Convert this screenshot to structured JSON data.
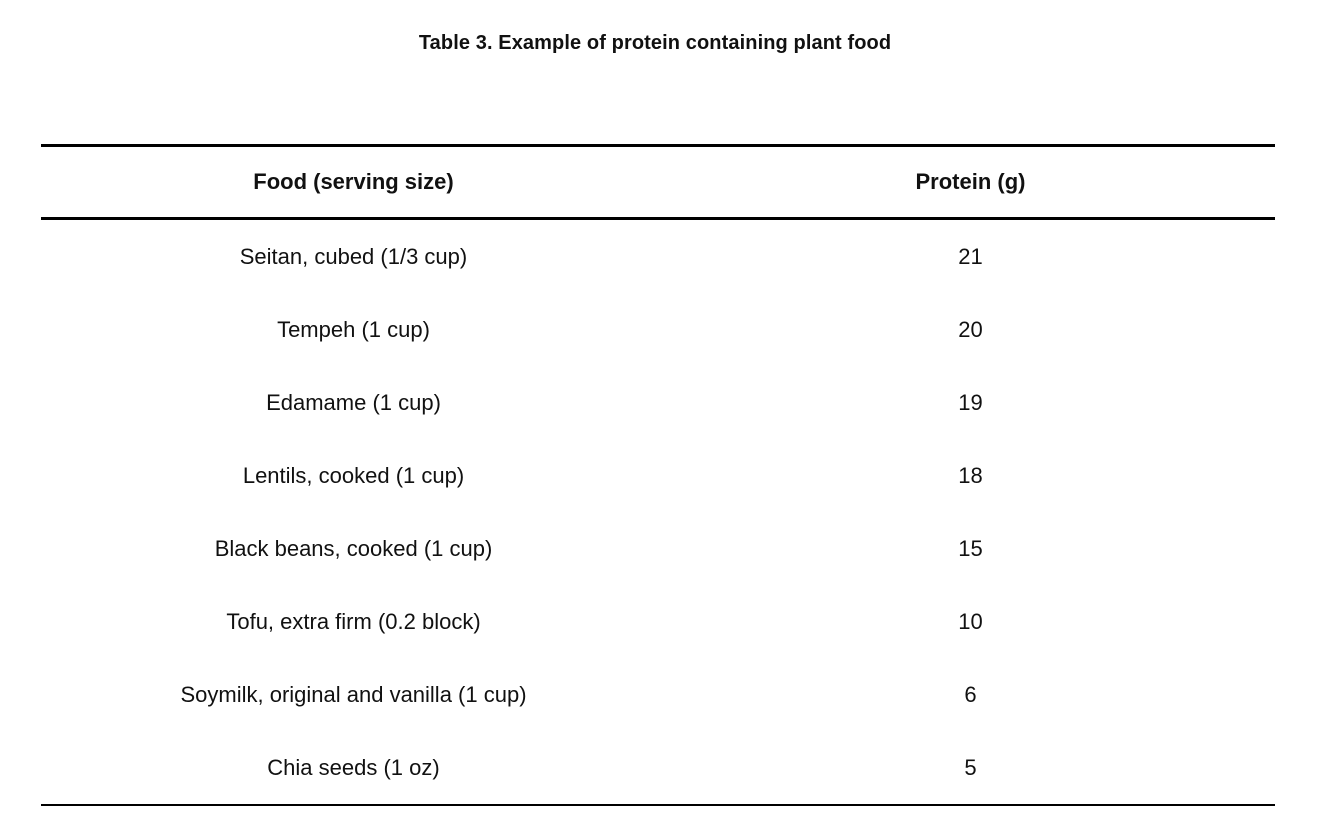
{
  "caption": "Table 3. Example of protein containing plant food",
  "table": {
    "headers": [
      "Food (serving size)",
      "Protein (g)"
    ],
    "rows": [
      [
        "Seitan, cubed (1/3 cup)",
        "21"
      ],
      [
        "Tempeh (1 cup)",
        "20"
      ],
      [
        "Edamame (1 cup)",
        "19"
      ],
      [
        "Lentils, cooked (1 cup)",
        "18"
      ],
      [
        "Black beans, cooked (1 cup)",
        "15"
      ],
      [
        "Tofu, extra firm (0.2 block)",
        "10"
      ],
      [
        "Soymilk, original and vanilla (1 cup)",
        "6"
      ],
      [
        "Chia seeds (1 oz)",
        "5"
      ]
    ]
  }
}
